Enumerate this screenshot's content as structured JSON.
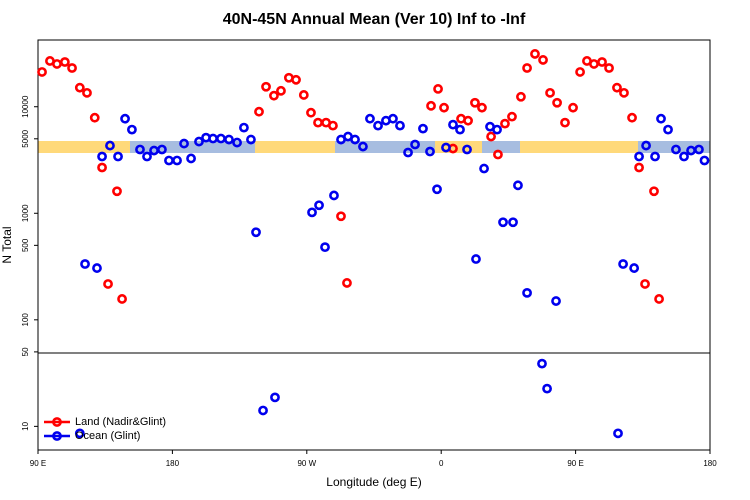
{
  "chart_data": {
    "type": "scatter",
    "title": "40N-45N Annual Mean (Ver 10)   Inf to -Inf",
    "x_label": "Longitude (deg E)",
    "y_label": "N Total",
    "xlim": [
      90,
      540
    ],
    "ylim": [
      6,
      42300
    ],
    "log_y": true,
    "legend": "bottom-left",
    "xticks": [
      {
        "value": 90,
        "label": "90 E"
      },
      {
        "value": 180,
        "label": "180"
      },
      {
        "value": 270,
        "label": "90 W"
      },
      {
        "value": 360,
        "label": "0"
      },
      {
        "value": 450,
        "label": "90 E"
      },
      {
        "value": 540,
        "label": "180"
      }
    ],
    "yticks": [
      10,
      50,
      100,
      500,
      1000,
      5000,
      10000
    ],
    "series": [
      {
        "name": "Land (Nadir&Glint)",
        "color": "#ff0000",
        "x": [
          92.7,
          98,
          102.7,
          108,
          112.8,
          118,
          122.8,
          128,
          132.9,
          136.9,
          142.9,
          146.3,
          238,
          242.7,
          248,
          252.7,
          258,
          262.8,
          268,
          272.8,
          277.5,
          282.9,
          287.5,
          292.9,
          296.9,
          353.2,
          357.9,
          361.9,
          367.9,
          373.3,
          378,
          382.6,
          387.3,
          393.4,
          398,
          402.7,
          407.4,
          413.4,
          417.5,
          422.8,
          428.2,
          432.9,
          437.6,
          442.9,
          448.3,
          453,
          457.6,
          462.3,
          467.7,
          472.4,
          477.7,
          482.4,
          487.8,
          492.5,
          496.5,
          502.5,
          505.9
        ],
        "values": [
          21200,
          26900,
          25200,
          26300,
          23100,
          15100,
          13500,
          7890,
          2690,
          217,
          1610,
          157,
          8980,
          15400,
          12700,
          14100,
          18700,
          17900,
          12900,
          8790,
          7090,
          7090,
          6650,
          938,
          222,
          10200,
          14700,
          9800,
          4050,
          7720,
          7400,
          10900,
          9800,
          5250,
          3560,
          6940,
          8070,
          12400,
          23100,
          31300,
          27500,
          13500,
          10900,
          7090,
          9800,
          21200,
          26900,
          25200,
          26300,
          23100,
          15100,
          13500,
          7890,
          2690,
          217,
          1610,
          157
        ]
      },
      {
        "name": "Ocean (Glint)",
        "color": "#0000ee",
        "x": [
          118,
          121.5,
          129.5,
          132.9,
          138.2,
          143.6,
          148.3,
          152.9,
          158.3,
          163,
          167.7,
          173,
          177.7,
          183.1,
          187.8,
          192.5,
          197.8,
          202.5,
          207.2,
          212.5,
          217.9,
          223.3,
          227.9,
          232.6,
          236,
          240.7,
          248.7,
          273.5,
          278.2,
          282.2,
          288.2,
          292.9,
          297.6,
          302.3,
          307.6,
          312.3,
          317.7,
          323,
          327.7,
          332.4,
          337.8,
          342.5,
          347.8,
          352.5,
          357.2,
          363.2,
          367.9,
          372.6,
          377.3,
          383.3,
          388.7,
          392.7,
          397.4,
          401.4,
          408.1,
          411.4,
          417.5,
          427.5,
          430.9,
          436.9,
          478.4,
          481.8,
          489.2,
          492.5,
          497.2,
          503.2,
          507.2,
          511.9,
          517.2,
          522.6,
          527.3,
          532.6,
          536.3
        ],
        "values": [
          8.6,
          334,
          306,
          3410,
          4320,
          3410,
          7720,
          6100,
          3970,
          3410,
          3880,
          3970,
          3130,
          3130,
          4510,
          3270,
          4710,
          5130,
          5030,
          5030,
          4920,
          4610,
          6370,
          4920,
          664,
          14.1,
          18.7,
          1020,
          1190,
          481,
          1470,
          4920,
          5250,
          4920,
          4230,
          7720,
          6650,
          7400,
          7720,
          6650,
          3720,
          4420,
          6230,
          3800,
          1680,
          4140,
          6790,
          6100,
          3970,
          372,
          2630,
          6500,
          6100,
          824,
          824,
          1830,
          179,
          38.8,
          22.6,
          150,
          8.6,
          334,
          306,
          3410,
          4320,
          3410,
          7720,
          6100,
          3970,
          3410,
          3880,
          3970,
          3130
        ]
      }
    ]
  }
}
